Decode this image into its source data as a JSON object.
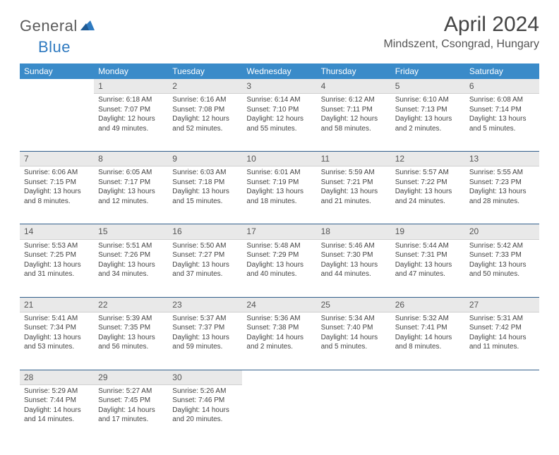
{
  "brand": {
    "text1": "General",
    "text2": "Blue"
  },
  "title": "April 2024",
  "location": "Mindszent, Csongrad, Hungary",
  "colors": {
    "header_bg": "#3a8bc9",
    "header_fg": "#ffffff",
    "daynum_bg": "#e9e9e9",
    "rule": "#2f5d8a",
    "brand_gray": "#5a5a5a",
    "brand_blue": "#2f7ac0"
  },
  "dayNames": [
    "Sunday",
    "Monday",
    "Tuesday",
    "Wednesday",
    "Thursday",
    "Friday",
    "Saturday"
  ],
  "weeks": [
    {
      "nums": [
        "",
        "1",
        "2",
        "3",
        "4",
        "5",
        "6"
      ],
      "cells": [
        [],
        [
          "Sunrise: 6:18 AM",
          "Sunset: 7:07 PM",
          "Daylight: 12 hours",
          "and 49 minutes."
        ],
        [
          "Sunrise: 6:16 AM",
          "Sunset: 7:08 PM",
          "Daylight: 12 hours",
          "and 52 minutes."
        ],
        [
          "Sunrise: 6:14 AM",
          "Sunset: 7:10 PM",
          "Daylight: 12 hours",
          "and 55 minutes."
        ],
        [
          "Sunrise: 6:12 AM",
          "Sunset: 7:11 PM",
          "Daylight: 12 hours",
          "and 58 minutes."
        ],
        [
          "Sunrise: 6:10 AM",
          "Sunset: 7:13 PM",
          "Daylight: 13 hours",
          "and 2 minutes."
        ],
        [
          "Sunrise: 6:08 AM",
          "Sunset: 7:14 PM",
          "Daylight: 13 hours",
          "and 5 minutes."
        ]
      ]
    },
    {
      "nums": [
        "7",
        "8",
        "9",
        "10",
        "11",
        "12",
        "13"
      ],
      "cells": [
        [
          "Sunrise: 6:06 AM",
          "Sunset: 7:15 PM",
          "Daylight: 13 hours",
          "and 8 minutes."
        ],
        [
          "Sunrise: 6:05 AM",
          "Sunset: 7:17 PM",
          "Daylight: 13 hours",
          "and 12 minutes."
        ],
        [
          "Sunrise: 6:03 AM",
          "Sunset: 7:18 PM",
          "Daylight: 13 hours",
          "and 15 minutes."
        ],
        [
          "Sunrise: 6:01 AM",
          "Sunset: 7:19 PM",
          "Daylight: 13 hours",
          "and 18 minutes."
        ],
        [
          "Sunrise: 5:59 AM",
          "Sunset: 7:21 PM",
          "Daylight: 13 hours",
          "and 21 minutes."
        ],
        [
          "Sunrise: 5:57 AM",
          "Sunset: 7:22 PM",
          "Daylight: 13 hours",
          "and 24 minutes."
        ],
        [
          "Sunrise: 5:55 AM",
          "Sunset: 7:23 PM",
          "Daylight: 13 hours",
          "and 28 minutes."
        ]
      ]
    },
    {
      "nums": [
        "14",
        "15",
        "16",
        "17",
        "18",
        "19",
        "20"
      ],
      "cells": [
        [
          "Sunrise: 5:53 AM",
          "Sunset: 7:25 PM",
          "Daylight: 13 hours",
          "and 31 minutes."
        ],
        [
          "Sunrise: 5:51 AM",
          "Sunset: 7:26 PM",
          "Daylight: 13 hours",
          "and 34 minutes."
        ],
        [
          "Sunrise: 5:50 AM",
          "Sunset: 7:27 PM",
          "Daylight: 13 hours",
          "and 37 minutes."
        ],
        [
          "Sunrise: 5:48 AM",
          "Sunset: 7:29 PM",
          "Daylight: 13 hours",
          "and 40 minutes."
        ],
        [
          "Sunrise: 5:46 AM",
          "Sunset: 7:30 PM",
          "Daylight: 13 hours",
          "and 44 minutes."
        ],
        [
          "Sunrise: 5:44 AM",
          "Sunset: 7:31 PM",
          "Daylight: 13 hours",
          "and 47 minutes."
        ],
        [
          "Sunrise: 5:42 AM",
          "Sunset: 7:33 PM",
          "Daylight: 13 hours",
          "and 50 minutes."
        ]
      ]
    },
    {
      "nums": [
        "21",
        "22",
        "23",
        "24",
        "25",
        "26",
        "27"
      ],
      "cells": [
        [
          "Sunrise: 5:41 AM",
          "Sunset: 7:34 PM",
          "Daylight: 13 hours",
          "and 53 minutes."
        ],
        [
          "Sunrise: 5:39 AM",
          "Sunset: 7:35 PM",
          "Daylight: 13 hours",
          "and 56 minutes."
        ],
        [
          "Sunrise: 5:37 AM",
          "Sunset: 7:37 PM",
          "Daylight: 13 hours",
          "and 59 minutes."
        ],
        [
          "Sunrise: 5:36 AM",
          "Sunset: 7:38 PM",
          "Daylight: 14 hours",
          "and 2 minutes."
        ],
        [
          "Sunrise: 5:34 AM",
          "Sunset: 7:40 PM",
          "Daylight: 14 hours",
          "and 5 minutes."
        ],
        [
          "Sunrise: 5:32 AM",
          "Sunset: 7:41 PM",
          "Daylight: 14 hours",
          "and 8 minutes."
        ],
        [
          "Sunrise: 5:31 AM",
          "Sunset: 7:42 PM",
          "Daylight: 14 hours",
          "and 11 minutes."
        ]
      ]
    },
    {
      "nums": [
        "28",
        "29",
        "30",
        "",
        "",
        "",
        ""
      ],
      "cells": [
        [
          "Sunrise: 5:29 AM",
          "Sunset: 7:44 PM",
          "Daylight: 14 hours",
          "and 14 minutes."
        ],
        [
          "Sunrise: 5:27 AM",
          "Sunset: 7:45 PM",
          "Daylight: 14 hours",
          "and 17 minutes."
        ],
        [
          "Sunrise: 5:26 AM",
          "Sunset: 7:46 PM",
          "Daylight: 14 hours",
          "and 20 minutes."
        ],
        [],
        [],
        [],
        []
      ]
    }
  ]
}
